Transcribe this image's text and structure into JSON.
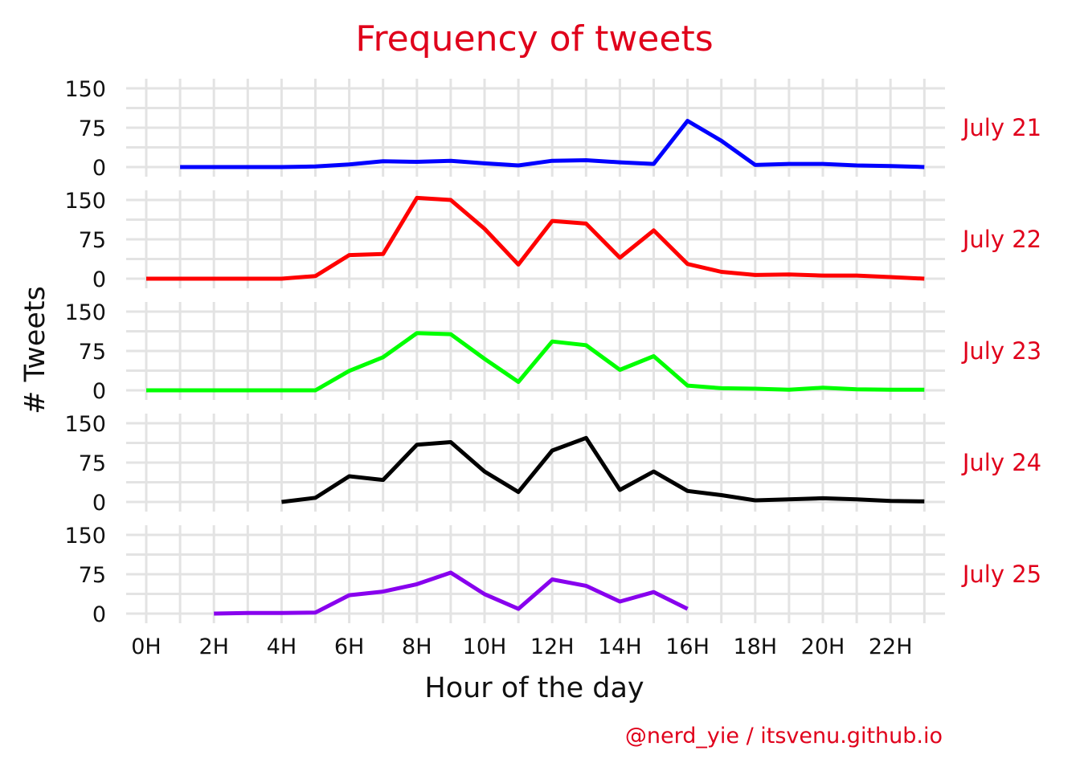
{
  "chart_data": {
    "type": "line",
    "title": "Frequency of tweets",
    "xlabel": "Hour of the day",
    "ylabel": "# Tweets",
    "caption": "@nerd_yie / itsvenu.github.io",
    "x_ticks": [
      "0H",
      "2H",
      "4H",
      "6H",
      "8H",
      "10H",
      "12H",
      "14H",
      "16H",
      "18H",
      "20H",
      "22H"
    ],
    "x_tick_values": [
      0,
      2,
      4,
      6,
      8,
      10,
      12,
      14,
      16,
      18,
      20,
      22
    ],
    "xlim": [
      0,
      23
    ],
    "y_ticks": [
      "0",
      "75",
      "150"
    ],
    "y_tick_values": [
      0,
      75,
      150
    ],
    "ylim": [
      0,
      150
    ],
    "grid": true,
    "legend": "none",
    "facets": [
      {
        "label": "July 21",
        "color": "#0000ff",
        "x": [
          1,
          2,
          3,
          4,
          5,
          6,
          7,
          8,
          9,
          10,
          11,
          12,
          13,
          14,
          15,
          16,
          17,
          18,
          19,
          20,
          21,
          22,
          23
        ],
        "values": [
          0,
          0,
          0,
          0,
          1,
          5,
          11,
          10,
          12,
          7,
          3,
          12,
          13,
          9,
          6,
          88,
          50,
          4,
          6,
          6,
          3,
          2,
          0
        ]
      },
      {
        "label": "July 22",
        "color": "#ff0000",
        "x": [
          0,
          1,
          2,
          3,
          4,
          5,
          6,
          7,
          8,
          9,
          10,
          11,
          12,
          13,
          14,
          15,
          16,
          17,
          18,
          19,
          20,
          21,
          22,
          23
        ],
        "values": [
          0,
          0,
          0,
          0,
          0,
          5,
          45,
          47,
          154,
          150,
          95,
          27,
          110,
          105,
          40,
          92,
          28,
          13,
          7,
          8,
          6,
          6,
          3,
          0
        ]
      },
      {
        "label": "July 23",
        "color": "#00ff00",
        "x": [
          0,
          1,
          2,
          3,
          4,
          5,
          6,
          7,
          8,
          9,
          10,
          11,
          12,
          13,
          14,
          15,
          16,
          17,
          18,
          19,
          20,
          21,
          22,
          23
        ],
        "values": [
          0,
          0,
          0,
          0,
          0,
          0,
          37,
          63,
          109,
          107,
          60,
          16,
          93,
          86,
          39,
          65,
          9,
          4,
          3,
          1,
          5,
          2,
          1,
          1
        ]
      },
      {
        "label": "July 24",
        "color": "#000000",
        "x": [
          4,
          5,
          6,
          7,
          8,
          9,
          10,
          11,
          12,
          13,
          14,
          15,
          16,
          17,
          18,
          19,
          20,
          21,
          22,
          23
        ],
        "values": [
          0,
          8,
          49,
          42,
          109,
          114,
          58,
          19,
          98,
          122,
          23,
          58,
          21,
          13,
          3,
          5,
          7,
          5,
          2,
          1
        ]
      },
      {
        "label": "July 25",
        "color": "#8800ee",
        "x": [
          2,
          3,
          4,
          5,
          6,
          7,
          8,
          9,
          10,
          11,
          12,
          13,
          14,
          15,
          16
        ],
        "values": [
          0,
          1,
          1,
          2,
          35,
          42,
          56,
          78,
          37,
          9,
          65,
          53,
          23,
          41,
          9
        ]
      }
    ]
  }
}
